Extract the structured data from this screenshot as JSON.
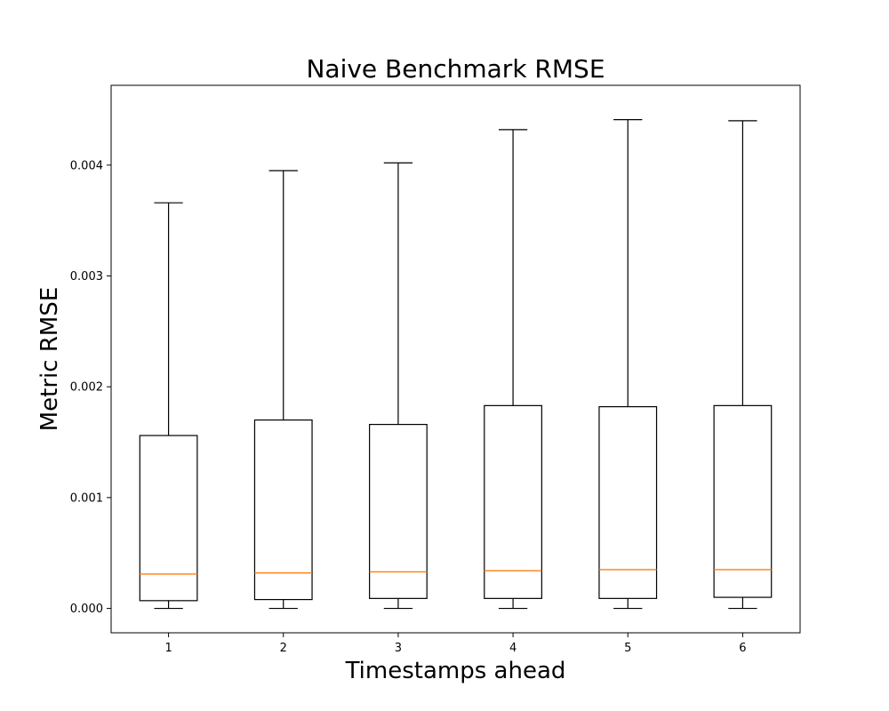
{
  "chart_data": {
    "type": "box",
    "title": "Naive Benchmark RMSE",
    "xlabel": "Timestamps ahead",
    "ylabel": "Metric RMSE",
    "categories": [
      "1",
      "2",
      "3",
      "4",
      "5",
      "6"
    ],
    "ylim": [
      -0.00022,
      0.00472
    ],
    "yticks": [
      0.0,
      0.001,
      0.002,
      0.003,
      0.004
    ],
    "ytick_labels": [
      "0.000",
      "0.001",
      "0.002",
      "0.003",
      "0.004"
    ],
    "grid": false,
    "boxes": [
      {
        "label": "1",
        "whisker_low": 0.0,
        "q1": 7e-05,
        "median": 0.00031,
        "q3": 0.00156,
        "whisker_high": 0.00366
      },
      {
        "label": "2",
        "whisker_low": 0.0,
        "q1": 8e-05,
        "median": 0.00032,
        "q3": 0.0017,
        "whisker_high": 0.00395
      },
      {
        "label": "3",
        "whisker_low": 0.0,
        "q1": 9e-05,
        "median": 0.00033,
        "q3": 0.00166,
        "whisker_high": 0.00402
      },
      {
        "label": "4",
        "whisker_low": 0.0,
        "q1": 9e-05,
        "median": 0.00034,
        "q3": 0.00183,
        "whisker_high": 0.00432
      },
      {
        "label": "5",
        "whisker_low": 0.0,
        "q1": 9e-05,
        "median": 0.00035,
        "q3": 0.00182,
        "whisker_high": 0.00441
      },
      {
        "label": "6",
        "whisker_low": 0.0,
        "q1": 0.0001,
        "median": 0.00035,
        "q3": 0.00183,
        "whisker_high": 0.0044
      }
    ],
    "colors": {
      "box": "#000000",
      "median": "#ff7f0e"
    }
  }
}
